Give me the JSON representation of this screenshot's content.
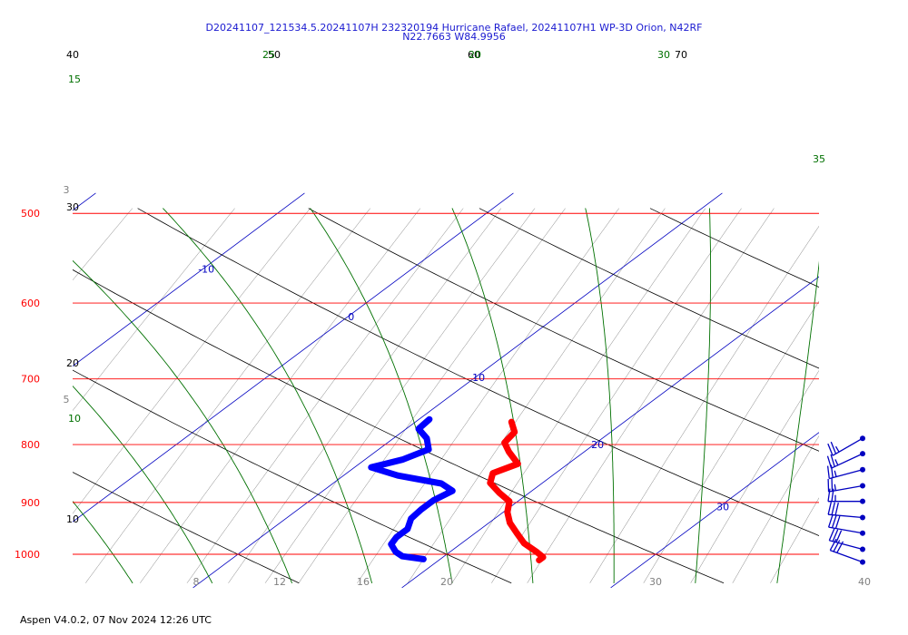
{
  "title": {
    "line1": "D20241107_121534.5.20241107H 232320194 Hurricane Rafael, 20241107H1 WP-3D Orion, N42RF",
    "line2": "N22.7663 W84.9956"
  },
  "footer": "Aspen V4.0.2, 07 Nov 2024  12:26 UTC",
  "colors": {
    "isobar": "#ff0000",
    "isotherm": "#0000c0",
    "dry_adiabat": "#000000",
    "moist_adiabat": "#007000",
    "mixing_ratio": "#808080",
    "temperature": "#ff0000",
    "dewpoint": "#0000ff",
    "wind_barb": "#0000c0"
  },
  "chart_data": {
    "type": "skew-t",
    "pressure_range_hpa": [
      1050,
      500
    ],
    "pressure_levels": [
      {
        "value": 500,
        "label": "500"
      },
      {
        "value": 600,
        "label": "600"
      },
      {
        "value": 700,
        "label": "700"
      },
      {
        "value": 800,
        "label": "800"
      },
      {
        "value": 900,
        "label": "900"
      },
      {
        "value": 1000,
        "label": "1000"
      }
    ],
    "isotherm_labels": [
      {
        "t": -10,
        "label": "-10"
      },
      {
        "t": 0,
        "label": "0"
      },
      {
        "t": 10,
        "label": "10"
      },
      {
        "t": 20,
        "label": "20"
      },
      {
        "t": 30,
        "label": "30"
      }
    ],
    "bottom_labels": [
      {
        "t": 8,
        "label": "8"
      },
      {
        "t": 12,
        "label": "12"
      },
      {
        "t": 16,
        "label": "16"
      },
      {
        "t": 20,
        "label": "20"
      },
      {
        "t": 30,
        "label": "30"
      },
      {
        "t": 40,
        "label": "40"
      }
    ],
    "dry_adiabat_labels": [
      "40",
      "30",
      "20",
      "10",
      "50",
      "60",
      "70"
    ],
    "moist_adiabat_labels": [
      "15",
      "10",
      "25",
      "20",
      "30",
      "35"
    ],
    "mixing_ratio_labels": [
      "3",
      "5"
    ],
    "temperature_profile": [
      {
        "p": 764,
        "t": 14.6
      },
      {
        "p": 780,
        "t": 15.4
      },
      {
        "p": 797,
        "t": 15.6
      },
      {
        "p": 812,
        "t": 16.4
      },
      {
        "p": 832,
        "t": 17.6
      },
      {
        "p": 848,
        "t": 17.0
      },
      {
        "p": 865,
        "t": 17.5
      },
      {
        "p": 883,
        "t": 18.6
      },
      {
        "p": 898,
        "t": 19.6
      },
      {
        "p": 918,
        "t": 20.2
      },
      {
        "p": 938,
        "t": 21.0
      },
      {
        "p": 958,
        "t": 22.0
      },
      {
        "p": 978,
        "t": 23.0
      },
      {
        "p": 996,
        "t": 24.2
      },
      {
        "p": 1006,
        "t": 24.8
      },
      {
        "p": 1012,
        "t": 24.8
      }
    ],
    "dewpoint_profile": [
      {
        "p": 760,
        "t": 10.5
      },
      {
        "p": 775,
        "t": 10.6
      },
      {
        "p": 790,
        "t": 11.6
      },
      {
        "p": 808,
        "t": 12.4
      },
      {
        "p": 825,
        "t": 11.8
      },
      {
        "p": 838,
        "t": 10.8
      },
      {
        "p": 852,
        "t": 12.6
      },
      {
        "p": 866,
        "t": 15.2
      },
      {
        "p": 879,
        "t": 16.2
      },
      {
        "p": 896,
        "t": 15.9
      },
      {
        "p": 913,
        "t": 15.9
      },
      {
        "p": 930,
        "t": 16.0
      },
      {
        "p": 950,
        "t": 16.5
      },
      {
        "p": 966,
        "t": 16.5
      },
      {
        "p": 980,
        "t": 16.7
      },
      {
        "p": 995,
        "t": 17.4
      },
      {
        "p": 1004,
        "t": 18.0
      },
      {
        "p": 1010,
        "t": 19.2
      }
    ],
    "wind_barbs": [
      {
        "p": 790,
        "dir": 60,
        "speed_kt": 25
      },
      {
        "p": 815,
        "dir": 65,
        "speed_kt": 25
      },
      {
        "p": 842,
        "dir": 75,
        "speed_kt": 25
      },
      {
        "p": 870,
        "dir": 80,
        "speed_kt": 25
      },
      {
        "p": 898,
        "dir": 90,
        "speed_kt": 25
      },
      {
        "p": 928,
        "dir": 95,
        "speed_kt": 30
      },
      {
        "p": 958,
        "dir": 100,
        "speed_kt": 30
      },
      {
        "p": 990,
        "dir": 105,
        "speed_kt": 30
      },
      {
        "p": 1016,
        "dir": 110,
        "speed_kt": 30
      }
    ]
  }
}
